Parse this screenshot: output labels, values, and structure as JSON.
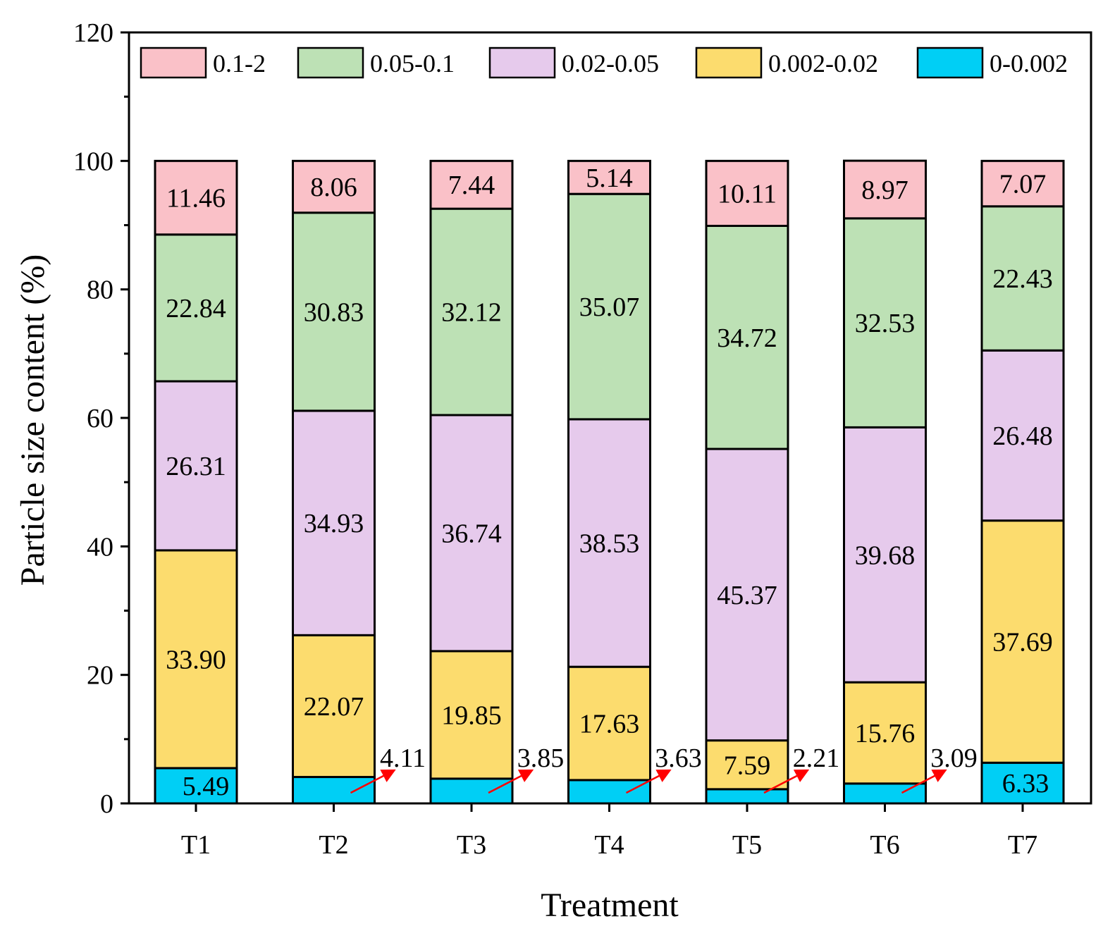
{
  "chart_data": {
    "type": "bar",
    "stacked": true,
    "title": "",
    "xlabel": "Treatment",
    "ylabel": "Particle size content (%)",
    "ylim": [
      0,
      120
    ],
    "yticks": [
      "0",
      "20",
      "40",
      "60",
      "80",
      "100",
      "120"
    ],
    "categories": [
      "T1",
      "T2",
      "T3",
      "T4",
      "T5",
      "T6",
      "T7"
    ],
    "legend_position": "top",
    "series": [
      {
        "name": "0-0.002",
        "color": "#00CFF5",
        "values": [
          5.49,
          4.11,
          3.85,
          3.63,
          2.21,
          3.09,
          6.33
        ],
        "labels": [
          "5.49",
          "4.11",
          "3.85",
          "3.63",
          "2.21",
          "3.09",
          "6.33"
        ]
      },
      {
        "name": "0.002-0.02",
        "color": "#FCDC6E",
        "values": [
          33.9,
          22.07,
          19.85,
          17.63,
          7.59,
          15.76,
          37.69
        ],
        "labels": [
          "33.90",
          "22.07",
          "19.85",
          "17.63",
          "7.59",
          "15.76",
          "37.69"
        ]
      },
      {
        "name": "0.02-0.05",
        "color": "#E6CAEC",
        "values": [
          26.31,
          34.93,
          36.74,
          38.53,
          45.37,
          39.68,
          26.48
        ],
        "labels": [
          "26.31",
          "34.93",
          "36.74",
          "38.53",
          "45.37",
          "39.68",
          "26.48"
        ]
      },
      {
        "name": "0.05-0.1",
        "color": "#BDE1B5",
        "values": [
          22.84,
          30.83,
          32.12,
          35.07,
          34.72,
          32.53,
          22.43
        ],
        "labels": [
          "22.84",
          "30.83",
          "32.12",
          "35.07",
          "34.72",
          "32.53",
          "22.43"
        ]
      },
      {
        "name": "0.1-2",
        "color": "#FAC1C8",
        "values": [
          11.46,
          8.06,
          7.44,
          5.14,
          10.11,
          8.97,
          7.07
        ],
        "labels": [
          "11.46",
          "8.06",
          "7.44",
          "5.14",
          "10.11",
          "8.97",
          "7.07"
        ]
      }
    ],
    "legend_order": [
      "0.1-2",
      "0.05-0.1",
      "0.02-0.05",
      "0.002-0.02",
      "0-0.002"
    ],
    "arrow_color": "#FF0000",
    "small_value_arrows": [
      "T2",
      "T3",
      "T4",
      "T5",
      "T6"
    ]
  }
}
